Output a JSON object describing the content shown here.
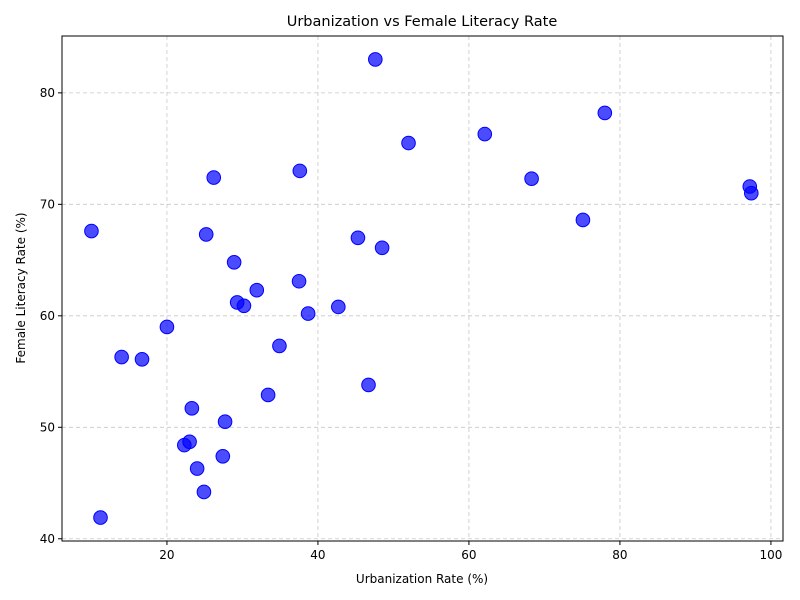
{
  "chart_data": {
    "type": "scatter",
    "title": "Urbanization vs Female Literacy Rate",
    "xlabel": "Urbanization Rate (%)",
    "ylabel": "Female Literacy Rate (%)",
    "xlim": [
      6.1,
      101.6
    ],
    "ylim": [
      39.8,
      85.1
    ],
    "xticks": [
      20,
      40,
      60,
      80,
      100
    ],
    "yticks": [
      40,
      50,
      60,
      70,
      80
    ],
    "grid": true,
    "marker_color": "#0000ff",
    "points": [
      {
        "x": 47.6,
        "y": 83.0
      },
      {
        "x": 78.0,
        "y": 78.2
      },
      {
        "x": 62.1,
        "y": 76.3
      },
      {
        "x": 52.0,
        "y": 75.5
      },
      {
        "x": 37.6,
        "y": 73.0
      },
      {
        "x": 26.2,
        "y": 72.4
      },
      {
        "x": 68.3,
        "y": 72.3
      },
      {
        "x": 97.2,
        "y": 71.6
      },
      {
        "x": 97.4,
        "y": 71.0
      },
      {
        "x": 75.1,
        "y": 68.6
      },
      {
        "x": 10.0,
        "y": 67.6
      },
      {
        "x": 25.2,
        "y": 67.3
      },
      {
        "x": 45.3,
        "y": 67.0
      },
      {
        "x": 48.5,
        "y": 66.1
      },
      {
        "x": 28.9,
        "y": 64.8
      },
      {
        "x": 37.5,
        "y": 63.1
      },
      {
        "x": 31.9,
        "y": 62.3
      },
      {
        "x": 29.3,
        "y": 61.2
      },
      {
        "x": 30.2,
        "y": 60.9
      },
      {
        "x": 42.7,
        "y": 60.8
      },
      {
        "x": 38.7,
        "y": 60.2
      },
      {
        "x": 20.0,
        "y": 59.0
      },
      {
        "x": 34.9,
        "y": 57.3
      },
      {
        "x": 14.0,
        "y": 56.3
      },
      {
        "x": 16.7,
        "y": 56.1
      },
      {
        "x": 46.7,
        "y": 53.8
      },
      {
        "x": 33.4,
        "y": 52.9
      },
      {
        "x": 23.3,
        "y": 51.7
      },
      {
        "x": 27.7,
        "y": 50.5
      },
      {
        "x": 23.0,
        "y": 48.7
      },
      {
        "x": 22.3,
        "y": 48.4
      },
      {
        "x": 27.4,
        "y": 47.4
      },
      {
        "x": 24.0,
        "y": 46.3
      },
      {
        "x": 24.9,
        "y": 44.2
      },
      {
        "x": 11.2,
        "y": 41.9
      }
    ]
  }
}
